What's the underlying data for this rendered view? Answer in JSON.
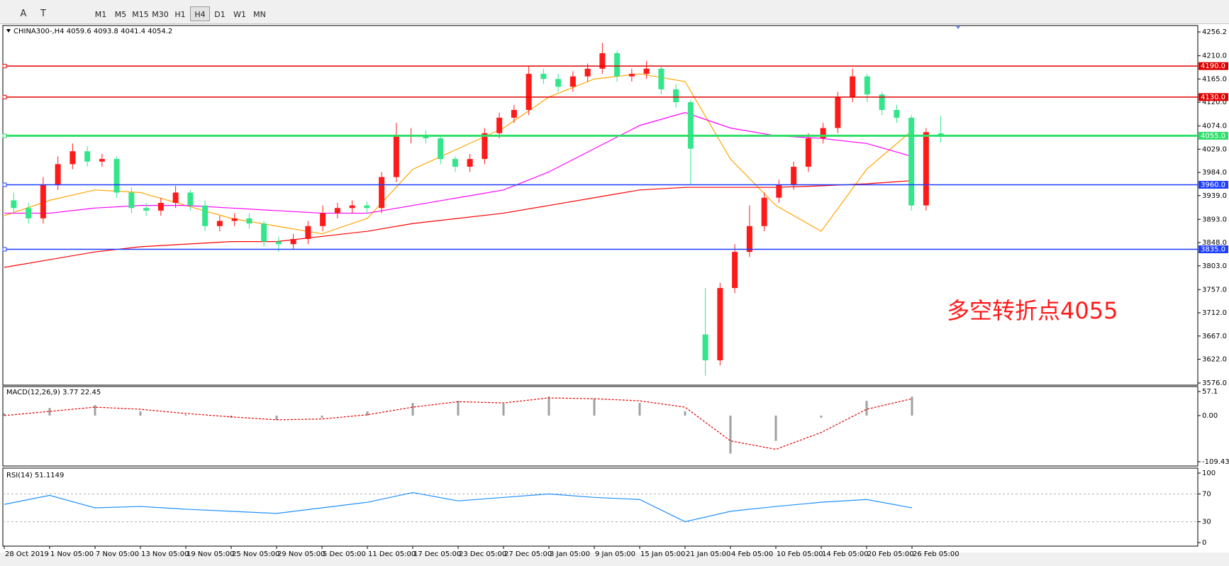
{
  "toolbar": {
    "tools": [
      "A",
      "T"
    ],
    "timeframes": [
      "M1",
      "M5",
      "M15",
      "M30",
      "H1",
      "H4",
      "D1",
      "W1",
      "MN"
    ],
    "active": "H4"
  },
  "chart_data": [
    {
      "type": "candlestick",
      "symbol": "CHINA300-,H4",
      "open": [
        3930,
        3915,
        3895,
        3960,
        4000,
        4025,
        4005,
        4010,
        3945,
        3915,
        3910,
        3925,
        3945,
        3920,
        3880,
        3890,
        3895,
        3885,
        3850,
        3845,
        3855,
        3880,
        3905,
        3915,
        3920,
        3915,
        3975,
        4055,
        4055,
        4050,
        4010,
        3995,
        4010,
        4060,
        4090,
        4105,
        4175,
        4165,
        4150,
        4170,
        4185,
        4215,
        4170,
        4175,
        4185,
        4145,
        4120,
        3670,
        3620,
        3760,
        3830,
        3880,
        3935,
        3960,
        3995,
        4050,
        4070,
        4130,
        4170,
        4135,
        4105,
        4090,
        3920,
        4059.6
      ],
      "high": [
        3945,
        3925,
        3975,
        4015,
        4040,
        4035,
        4020,
        4015,
        3955,
        3925,
        3935,
        3958,
        3950,
        3930,
        3900,
        3905,
        3905,
        3890,
        3860,
        3865,
        3890,
        3920,
        3925,
        3930,
        3928,
        3985,
        4080,
        4070,
        4065,
        4055,
        4015,
        4020,
        4070,
        4100,
        4115,
        4190,
        4185,
        4175,
        4180,
        4195,
        4235,
        4220,
        4185,
        4200,
        4190,
        4155,
        4125,
        3760,
        3770,
        3845,
        3920,
        3945,
        3970,
        4005,
        4060,
        4080,
        4140,
        4185,
        4175,
        4140,
        4115,
        4095,
        4070,
        4093.8
      ],
      "low": [
        3905,
        3885,
        3885,
        3950,
        3990,
        3995,
        3995,
        3935,
        3905,
        3900,
        3900,
        3915,
        3910,
        3870,
        3870,
        3880,
        3875,
        3840,
        3830,
        3835,
        3845,
        3870,
        3895,
        3905,
        3905,
        3905,
        3965,
        4040,
        4040,
        4000,
        3985,
        3985,
        4000,
        4050,
        4080,
        4095,
        4155,
        4140,
        4140,
        4160,
        4175,
        4160,
        4160,
        4165,
        4135,
        4110,
        3960,
        3590,
        3610,
        3750,
        3820,
        3870,
        3925,
        3950,
        3985,
        4040,
        4060,
        4120,
        4120,
        4095,
        4080,
        3910,
        3910,
        4041.4
      ],
      "close": [
        3915,
        3895,
        3960,
        4000,
        4025,
        4005,
        4010,
        3945,
        3915,
        3910,
        3925,
        3945,
        3920,
        3880,
        3890,
        3895,
        3885,
        3850,
        3845,
        3855,
        3880,
        3905,
        3915,
        3920,
        3915,
        3975,
        4055,
        4055,
        4050,
        4010,
        3995,
        4010,
        4060,
        4090,
        4105,
        4175,
        4165,
        4150,
        4170,
        4185,
        4215,
        4170,
        4175,
        4185,
        4145,
        4120,
        4030,
        3620,
        3760,
        3830,
        3880,
        3935,
        3960,
        3995,
        4050,
        4070,
        4130,
        4170,
        4135,
        4105,
        4090,
        3920,
        4062,
        4054.2
      ],
      "up_color": "#ff1a1a",
      "down_color": "#33e68a",
      "time_labels": [
        "28 Oct 2019",
        "1 Nov 05:00",
        "7 Nov 05:00",
        "13 Nov 05:00",
        "19 Nov 05:00",
        "25 Nov 05:00",
        "29 Nov 05:00",
        "5 Dec 05:00",
        "11 Dec 05:00",
        "17 Dec 05:00",
        "23 Dec 05:00",
        "27 Dec 05:00",
        "3 Jan 05:00",
        "9 Jan 05:00",
        "15 Jan 05:00",
        "21 Jan 05:00",
        "4 Feb 05:00",
        "10 Feb 05:00",
        "14 Feb 05:00",
        "20 Feb 05:00",
        "26 Feb 05:00"
      ],
      "moving_averages": [
        {
          "color": "#ffa500",
          "values": [
            3900,
            3930,
            3950,
            3945,
            3920,
            3895,
            3880,
            3865,
            3895,
            3990,
            4030,
            4070,
            4130,
            4165,
            4175,
            4160,
            4010,
            3920,
            3870,
            3990,
            4065
          ]
        },
        {
          "color": "#ff00ff",
          "values": [
            3905,
            3905,
            3915,
            3920,
            3920,
            3915,
            3910,
            3905,
            3905,
            3920,
            3935,
            3950,
            3985,
            4030,
            4075,
            4100,
            4070,
            4055,
            4050,
            4040,
            4015
          ]
        },
        {
          "color": "#ff0000",
          "values": [
            3800,
            3815,
            3830,
            3840,
            3845,
            3850,
            3850,
            3860,
            3870,
            3885,
            3895,
            3905,
            3920,
            3935,
            3950,
            3955,
            3955,
            3955,
            3958,
            3962,
            3968
          ]
        }
      ],
      "levels": [
        {
          "value": 4190,
          "label": "4190.0",
          "color": "#e00000"
        },
        {
          "value": 4130,
          "label": "4130.0",
          "color": "#e00000"
        },
        {
          "value": 4055,
          "label": "4055.0",
          "color": "#2ee06a"
        },
        {
          "value": 3960,
          "label": "3960.0",
          "color": "#1f3fff"
        },
        {
          "value": 3835,
          "label": "3835.0",
          "color": "#1f3fff"
        }
      ],
      "annotation": {
        "text": "多空转折点4055",
        "color": "#ff1a1a"
      },
      "ylim": [
        3576.0,
        4256.2
      ],
      "yticks": [
        4256.2,
        {
          "value": 4210,
          "label": "4210.0"
        },
        {
          "value": 4165,
          "label": "4165.0"
        },
        {
          "value": 4120,
          "label": "4120.0"
        },
        {
          "value": 4074,
          "label": "4074.0"
        },
        {
          "value": 4029,
          "label": "4029.0"
        },
        {
          "value": 3984,
          "label": "3984.0"
        },
        {
          "value": 3939,
          "label": "3939.0"
        },
        {
          "value": 3893,
          "label": "3893.0"
        },
        {
          "value": 3848,
          "label": "3848.0"
        },
        {
          "value": 3803,
          "label": "3803.0"
        },
        {
          "value": 3757,
          "label": "3757.0"
        },
        {
          "value": 3712,
          "label": "3712.0"
        },
        {
          "value": 3667,
          "label": "3667.0"
        },
        {
          "value": 3622,
          "label": "3622.0"
        },
        {
          "value": 3576,
          "label": "3576.0"
        }
      ]
    },
    {
      "type": "macd",
      "title": "MACD(12,26,9) 3.77 22.45",
      "histogram": [
        5,
        18,
        25,
        10,
        2,
        -5,
        -10,
        -5,
        10,
        30,
        35,
        28,
        45,
        40,
        30,
        10,
        -90,
        -60,
        -5,
        35,
        45
      ],
      "histogram_color": "#a0a0a0",
      "signal": [
        0,
        10,
        20,
        15,
        5,
        -3,
        -10,
        -8,
        2,
        20,
        33,
        30,
        42,
        40,
        35,
        20,
        -60,
        -80,
        -40,
        15,
        40
      ],
      "signal_color": "#e00000",
      "ylim": [
        -109.43,
        57.1
      ],
      "yticks": [
        57.1,
        {
          "value": 0,
          "label": "0.00"
        },
        -109.43
      ]
    },
    {
      "type": "line",
      "title": "RSI(14) 51.1149",
      "values": [
        55,
        68,
        50,
        52,
        48,
        45,
        42,
        50,
        58,
        72,
        60,
        65,
        70,
        65,
        62,
        30,
        45,
        52,
        58,
        62,
        50
      ],
      "color": "#1e90ff",
      "ylim": [
        0,
        100
      ],
      "yticks": [
        100,
        70,
        30,
        0
      ]
    }
  ]
}
